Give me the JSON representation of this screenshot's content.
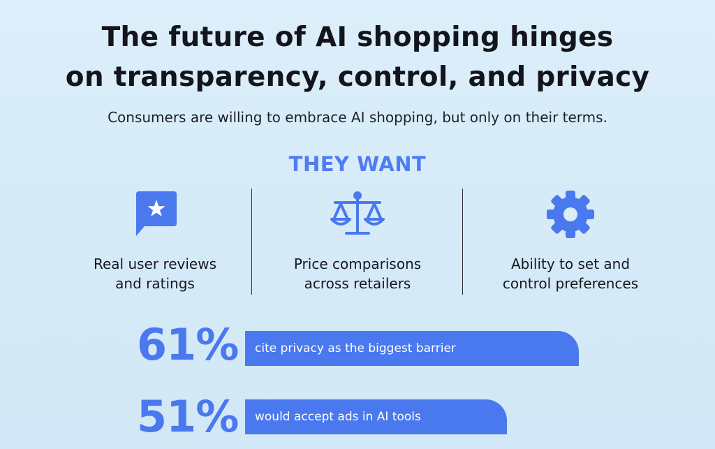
{
  "headline": {
    "line1": "The future of AI shopping hinges",
    "line2": "on transparency, control, and privacy"
  },
  "subtitle": "Consumers are willing to embrace AI shopping, but only on their terms.",
  "section_heading": "THEY WANT",
  "features": [
    {
      "icon": "chat-star-icon",
      "line1": "Real user reviews",
      "line2": "and ratings"
    },
    {
      "icon": "scale-icon",
      "line1": "Price comparisons",
      "line2": "across retailers"
    },
    {
      "icon": "gear-icon",
      "line1": "Ability to set and",
      "line2": "control preferences"
    }
  ],
  "stats": [
    {
      "value": "61%",
      "text": "cite privacy as the biggest barrier",
      "percent": 61
    },
    {
      "value": "51%",
      "text": "would accept ads in AI tools",
      "percent": 51
    }
  ],
  "colors": {
    "accent": "#4a78ee",
    "heading_accent": "#4f7cf0",
    "text": "#14151c",
    "background": "#d6ebf8"
  }
}
